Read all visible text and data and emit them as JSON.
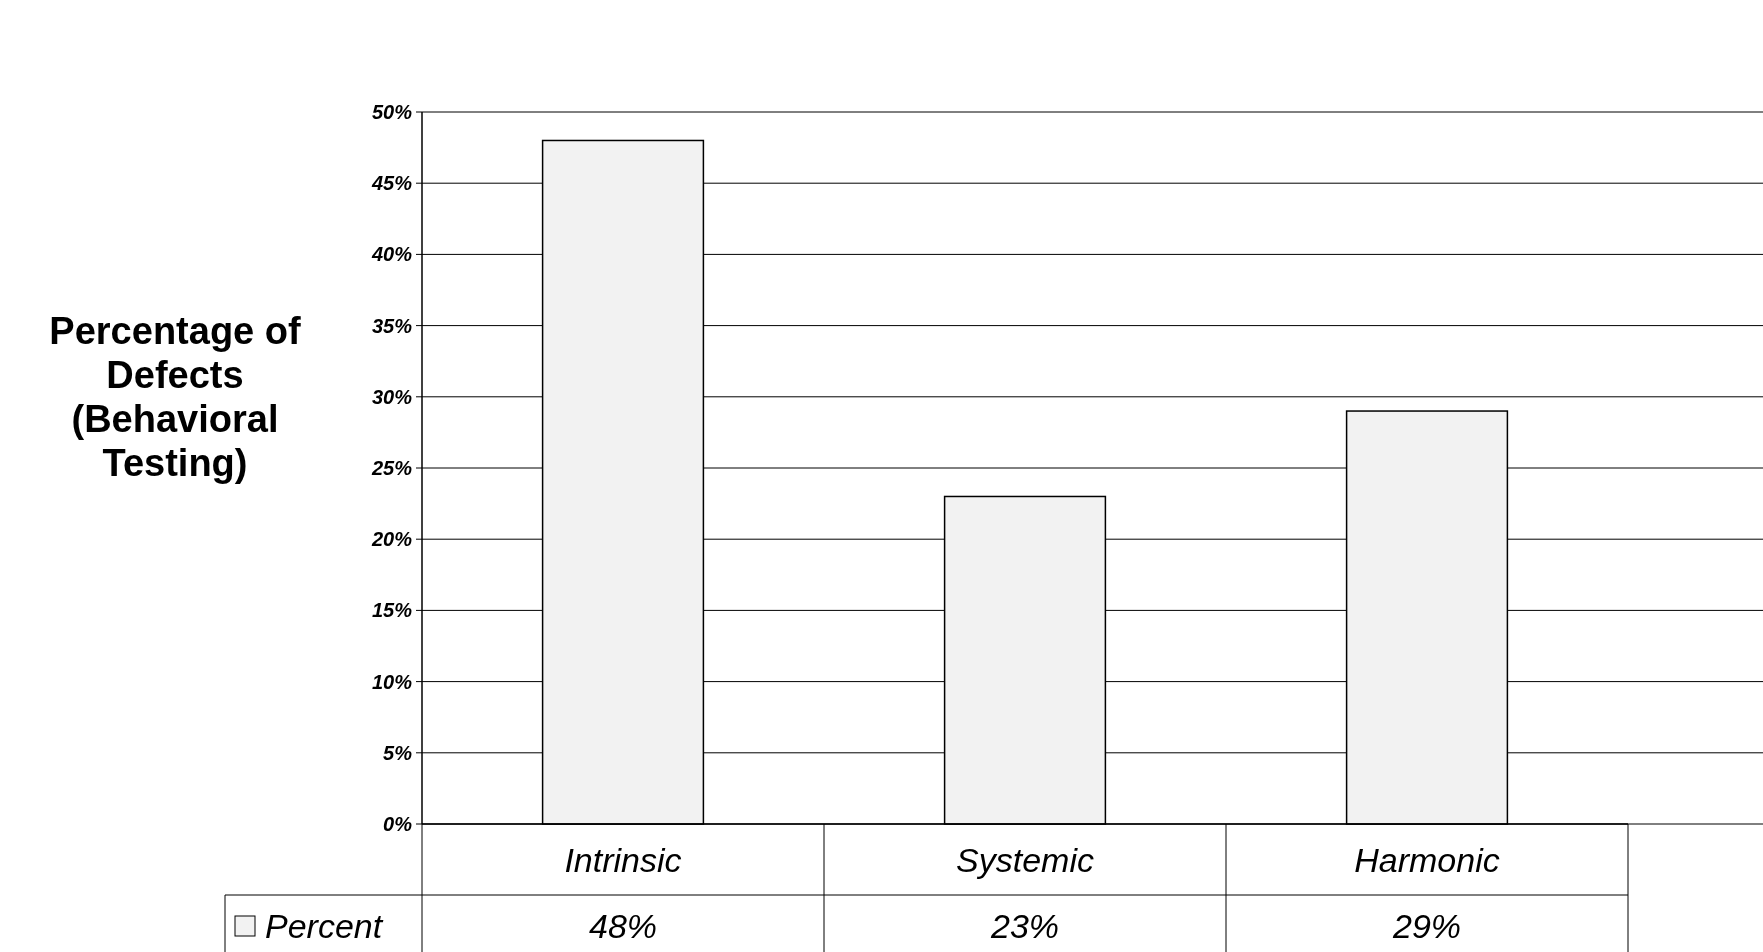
{
  "chart_data": {
    "type": "bar",
    "ylabel": "Percentage of Defects (Behavioral Testing)",
    "categories": [
      "Intrinsic",
      "Systemic",
      "Harmonic"
    ],
    "series": [
      {
        "name": "Percent",
        "color": "#f2f2f2",
        "values": [
          48,
          23,
          29
        ],
        "value_labels": [
          "48%",
          "23%",
          "29%"
        ]
      }
    ],
    "ylim": [
      0,
      50
    ],
    "yticks": [
      {
        "value": 0,
        "label": "0%"
      },
      {
        "value": 5,
        "label": "5%"
      },
      {
        "value": 10,
        "label": "10%"
      },
      {
        "value": 15,
        "label": "15%"
      },
      {
        "value": 20,
        "label": "20%"
      },
      {
        "value": 25,
        "label": "25%"
      },
      {
        "value": 30,
        "label": "30%"
      },
      {
        "value": 35,
        "label": "35%"
      },
      {
        "value": 40,
        "label": "40%"
      },
      {
        "value": 45,
        "label": "45%"
      },
      {
        "value": 50,
        "label": "50%"
      }
    ],
    "grid": "y",
    "legend": "bottom left"
  }
}
